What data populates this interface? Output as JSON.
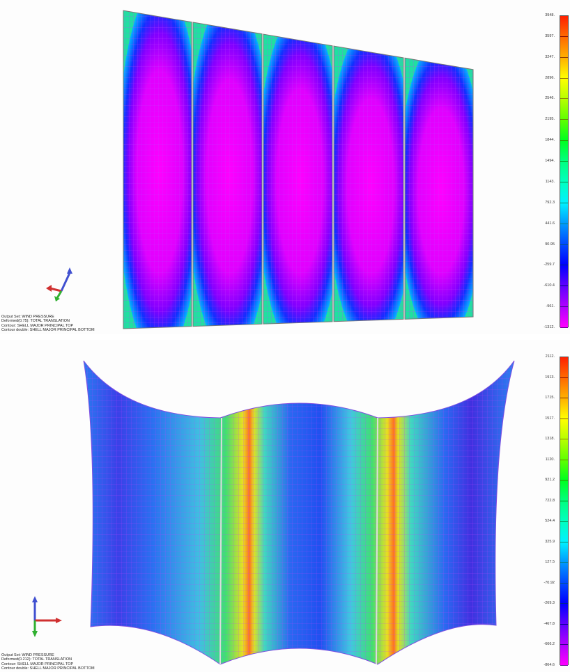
{
  "top_view": {
    "info": [
      "Output Set: WIND PRESSURE",
      "Deformed(0.75): TOTAL TRANSLATION",
      "Contour: SHELL MAJOR PRINCIPAL TOP",
      "Contour double: SHELL MAJOR PRINCIPAL BOTTOM"
    ],
    "legend": [
      "3948.",
      "3597.",
      "3247.",
      "2896.",
      "2546.",
      "2195.",
      "1844.",
      "1494.",
      "1143.",
      "792.3",
      "441.6",
      "90.95",
      "-259.7",
      "-610.4",
      "-961.",
      "-1312."
    ]
  },
  "bottom_view": {
    "info": [
      "Output Set: WIND PRESSURE",
      "Deformed(0.212): TOTAL TRANSLATION",
      "Contour: SHELL MAJOR PRINCIPAL TOP",
      "Contour double: SHELL MAJOR PRINCIPAL BOTTOM"
    ],
    "legend": [
      "2112.",
      "1913.",
      "1715.",
      "1517.",
      "1318.",
      "1120.",
      "921.2",
      "722.8",
      "524.4",
      "325.9",
      "127.5",
      "-70.92",
      "-269.3",
      "-467.8",
      "-666.2",
      "-864.6"
    ]
  },
  "colors": {
    "scale": [
      "#ff2000",
      "#ff6a00",
      "#ffb000",
      "#ffff00",
      "#b8ff00",
      "#60ff00",
      "#00ff20",
      "#00ff80",
      "#00ffc0",
      "#00f0ff",
      "#0098ff",
      "#0048ff",
      "#0000ff",
      "#6000ff",
      "#b000ff",
      "#ff00ff"
    ],
    "mesh": "#c040ff"
  },
  "icons": [
    "axis-triad-icon"
  ]
}
